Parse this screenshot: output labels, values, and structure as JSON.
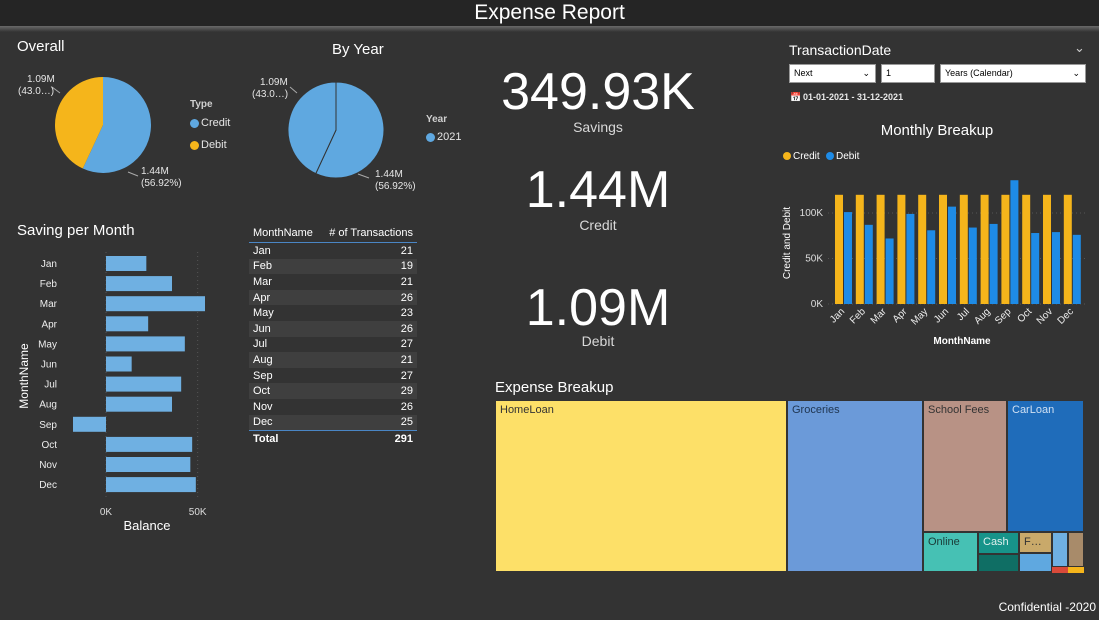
{
  "header": {
    "title": "Expense Report"
  },
  "footer": {
    "text": "Confidential -2020"
  },
  "colors": {
    "credit": "#5fa8e0",
    "debit": "#f5b51b",
    "bar": "#6fb0e2",
    "credit_bar": "#f5b51b",
    "debit_bar": "#1e8be6"
  },
  "overall": {
    "title": "Overall",
    "label_debit_value": "1.09M",
    "label_debit_pct": "(43.0…)",
    "label_credit_value": "1.44M",
    "label_credit_pct": "(56.92%)",
    "legend_title": "Type",
    "legend": [
      "Credit",
      "Debit"
    ]
  },
  "by_year": {
    "title": "By Year",
    "label_a_value": "1.09M",
    "label_a_pct": "(43.0…)",
    "label_b_value": "1.44M",
    "label_b_pct": "(56.92%)",
    "legend_title": "Year",
    "legend": [
      "2021"
    ]
  },
  "kpis": {
    "savings_value": "349.93K",
    "savings_label": "Savings",
    "credit_value": "1.44M",
    "credit_label": "Credit",
    "debit_value": "1.09M",
    "debit_label": "Debit"
  },
  "filter": {
    "title": "TransactionDate",
    "mode": "Next",
    "count": "1",
    "unit": "Years (Calendar)",
    "range": "01-01-2021 - 31-12-2021"
  },
  "transactions_table": {
    "headers": [
      "MonthName",
      "# of Transactions"
    ],
    "rows": [
      [
        "Jan",
        "21"
      ],
      [
        "Feb",
        "19"
      ],
      [
        "Mar",
        "21"
      ],
      [
        "Apr",
        "26"
      ],
      [
        "May",
        "23"
      ],
      [
        "Jun",
        "26"
      ],
      [
        "Jul",
        "27"
      ],
      [
        "Aug",
        "21"
      ],
      [
        "Sep",
        "27"
      ],
      [
        "Oct",
        "29"
      ],
      [
        "Nov",
        "26"
      ],
      [
        "Dec",
        "25"
      ]
    ],
    "total": [
      "Total",
      "291"
    ]
  },
  "expense_breakup": {
    "title": "Expense Breakup",
    "labels": [
      "HomeLoan",
      "Groceries",
      "School Fees",
      "CarLoan",
      "Online",
      "Cash",
      "F…"
    ]
  },
  "chart_data": [
    {
      "type": "pie",
      "title": "Overall",
      "categories": [
        "Credit",
        "Debit"
      ],
      "values": [
        1.44,
        1.09
      ],
      "percents": [
        56.92,
        43.08
      ],
      "unit": "M",
      "legend_title": "Type"
    },
    {
      "type": "pie",
      "title": "By Year",
      "values": [
        1.44,
        1.09
      ],
      "percents": [
        56.92,
        43.08
      ],
      "unit": "M",
      "legend_title": "Year",
      "legend": [
        "2021"
      ]
    },
    {
      "type": "bar",
      "orientation": "horizontal",
      "title": "Saving per Month",
      "xlabel": "Balance",
      "ylabel": "MonthName",
      "categories": [
        "Jan",
        "Feb",
        "Mar",
        "Apr",
        "May",
        "Jun",
        "Jul",
        "Aug",
        "Sep",
        "Oct",
        "Nov",
        "Dec"
      ],
      "values": [
        22000,
        36000,
        54000,
        23000,
        43000,
        14000,
        41000,
        36000,
        -18000,
        47000,
        46000,
        49000
      ],
      "ticks": [
        "0K",
        "50K"
      ],
      "xlim": [
        -18000,
        55000
      ]
    },
    {
      "type": "bar",
      "title": "Monthly Breakup",
      "xlabel": "MonthName",
      "ylabel": "Credit and Debit",
      "categories": [
        "Jan",
        "Feb",
        "Mar",
        "Apr",
        "May",
        "Jun",
        "Jul",
        "Aug",
        "Sep",
        "Oct",
        "Nov",
        "Dec"
      ],
      "series": [
        {
          "name": "Credit",
          "values": [
            120000,
            120000,
            120000,
            120000,
            120000,
            120000,
            120000,
            120000,
            120000,
            120000,
            120000,
            120000
          ]
        },
        {
          "name": "Debit",
          "values": [
            101000,
            87000,
            72000,
            99000,
            81000,
            107000,
            84000,
            88000,
            136000,
            78000,
            79000,
            76000
          ]
        }
      ],
      "ticks": [
        "0K",
        "50K",
        "100K"
      ],
      "ylim": [
        0,
        140000
      ],
      "legend": "top-left"
    },
    {
      "type": "treemap",
      "title": "Expense Breakup",
      "categories": [
        "HomeLoan",
        "Groceries",
        "School Fees",
        "CarLoan",
        "Online",
        "Cash",
        "F…"
      ],
      "values": [
        45,
        20,
        13,
        12,
        4,
        3,
        2
      ]
    }
  ]
}
